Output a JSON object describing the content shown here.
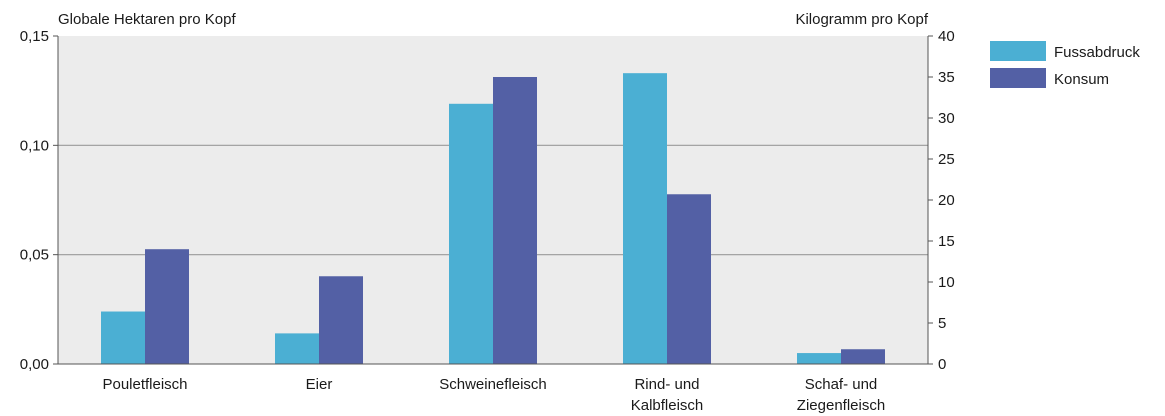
{
  "chart_data": {
    "type": "bar",
    "categories": [
      [
        "Pouletfleisch"
      ],
      [
        "Eier"
      ],
      [
        "Schweinefleisch"
      ],
      [
        "Rind- und",
        "Kalbfleisch"
      ],
      [
        "Schaf- und",
        "Ziegenfleisch"
      ]
    ],
    "series": [
      {
        "name": "Fussabdruck",
        "axis": "left",
        "color": "#4bafd3",
        "values": [
          0.024,
          0.014,
          0.119,
          0.133,
          0.005
        ]
      },
      {
        "name": "Konsum",
        "axis": "right",
        "color": "#5360a5",
        "values": [
          14.0,
          10.7,
          35.0,
          20.7,
          1.8
        ]
      }
    ],
    "left_axis": {
      "label": "Globale Hektaren pro Kopf",
      "ylim": [
        0,
        0.15
      ],
      "ticks": [
        0,
        0.05,
        0.1,
        0.15
      ],
      "tick_labels": [
        "0,00",
        "0,05",
        "0,10",
        "0,15"
      ]
    },
    "right_axis": {
      "label": "Kilogramm pro Kopf",
      "ylim": [
        0,
        40
      ],
      "ticks": [
        0,
        5,
        10,
        15,
        20,
        25,
        30,
        35,
        40
      ],
      "tick_labels": [
        "0",
        "5",
        "10",
        "15",
        "20",
        "25",
        "30",
        "35",
        "40"
      ]
    },
    "grid": true,
    "legend_position": "top-right",
    "plot_background": "#ececec",
    "grid_color": "#9a9a9a"
  }
}
